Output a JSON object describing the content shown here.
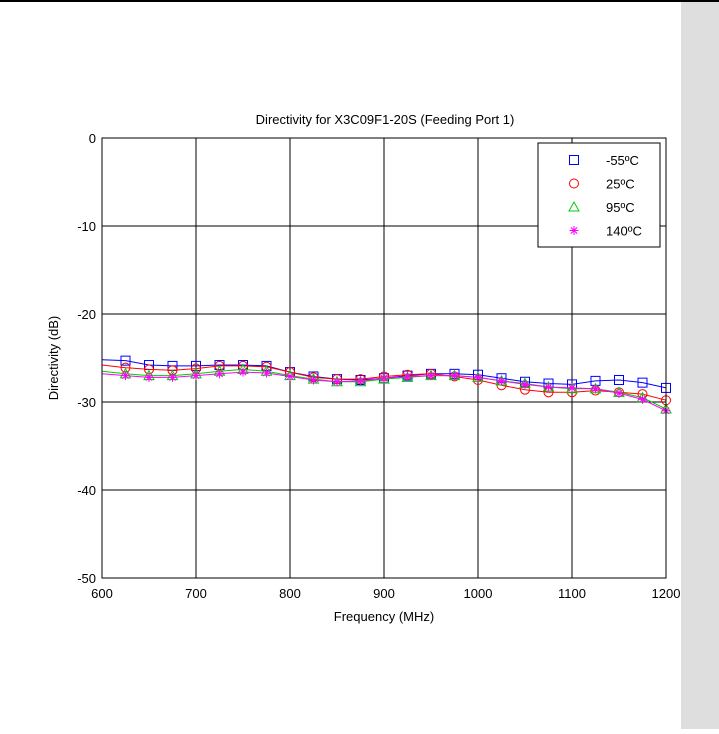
{
  "colors": {
    "panel": "#dedede",
    "series": [
      "#0000ff",
      "#ff0000",
      "#00cc00",
      "#ff00ff"
    ]
  },
  "chart_data": {
    "type": "line",
    "title": "Directivity for X3C09F1-20S (Feeding Port 1)",
    "xlabel": "Frequency (MHz)",
    "ylabel": "Directivity (dB)",
    "xlim": [
      600,
      1200
    ],
    "ylim": [
      -50,
      0
    ],
    "xticks": [
      600,
      700,
      800,
      900,
      1000,
      1100,
      1200
    ],
    "yticks": [
      0,
      -10,
      -20,
      -30,
      -40,
      -50
    ],
    "xtick_labels": [
      "600",
      "700",
      "800",
      "900",
      "1000",
      "1100",
      "1200"
    ],
    "ytick_labels": [
      "0",
      "-10",
      "-20",
      "-30",
      "-40",
      "-50"
    ],
    "grid": true,
    "legend_position": "top-right",
    "x": [
      600,
      625,
      650,
      675,
      700,
      725,
      750,
      775,
      800,
      825,
      850,
      875,
      900,
      925,
      950,
      975,
      1000,
      1025,
      1050,
      1075,
      1100,
      1125,
      1150,
      1175,
      1200
    ],
    "series": [
      {
        "name": "-55ºC",
        "marker": "square",
        "color": "#0000ff",
        "values": [
          -25.2,
          -25.3,
          -25.8,
          -25.9,
          -25.9,
          -25.8,
          -25.8,
          -25.9,
          -26.6,
          -27.1,
          -27.4,
          -27.5,
          -27.3,
          -27.0,
          -26.8,
          -26.8,
          -26.9,
          -27.3,
          -27.7,
          -27.9,
          -28.0,
          -27.6,
          -27.5,
          -27.8,
          -28.4
        ]
      },
      {
        "name": "25ºC",
        "marker": "circle",
        "color": "#ff0000",
        "values": [
          -25.8,
          -26.1,
          -26.3,
          -26.4,
          -26.2,
          -25.9,
          -25.9,
          -26.0,
          -26.6,
          -27.2,
          -27.4,
          -27.4,
          -27.1,
          -26.9,
          -26.8,
          -27.1,
          -27.5,
          -28.1,
          -28.6,
          -28.9,
          -28.9,
          -28.7,
          -28.9,
          -29.1,
          -29.8
        ]
      },
      {
        "name": "95ºC",
        "marker": "triangle",
        "color": "#00cc00",
        "values": [
          -26.5,
          -26.8,
          -27.0,
          -27.0,
          -26.8,
          -26.5,
          -26.3,
          -26.5,
          -27.0,
          -27.4,
          -27.7,
          -27.7,
          -27.4,
          -27.2,
          -27.0,
          -27.0,
          -27.2,
          -27.6,
          -27.9,
          -28.3,
          -28.5,
          -28.5,
          -28.9,
          -29.5,
          -30.8
        ]
      },
      {
        "name": "140ºC",
        "marker": "asterisk",
        "color": "#ff00ff",
        "values": [
          -26.8,
          -27.0,
          -27.2,
          -27.2,
          -27.0,
          -26.8,
          -26.6,
          -26.7,
          -27.1,
          -27.5,
          -27.7,
          -27.6,
          -27.3,
          -27.1,
          -27.0,
          -27.0,
          -27.2,
          -27.6,
          -28.0,
          -28.3,
          -28.4,
          -28.5,
          -29.0,
          -29.7,
          -31.0
        ]
      }
    ]
  }
}
